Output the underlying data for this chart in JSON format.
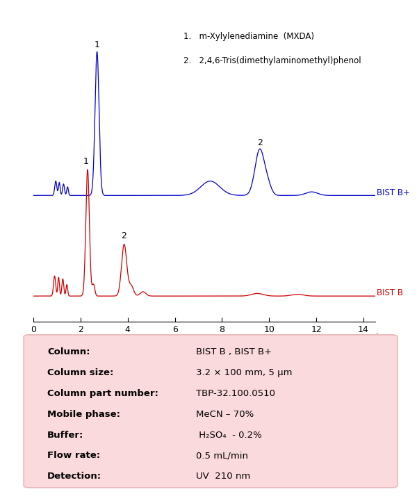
{
  "blue_label": "BIST B+",
  "red_label": "BIST B",
  "legend_line1": "1.   m-Xylylenediamine  (MXDA)",
  "legend_line2": "2.   2,4,6-Tris(dimethylaminomethyl)phenol",
  "xlabel": "min",
  "xlim": [
    0,
    14.5
  ],
  "xticks": [
    0,
    2,
    4,
    6,
    8,
    10,
    12,
    14
  ],
  "blue_color": "#0000CC",
  "red_color": "#CC0000",
  "box_color": "#FADADD",
  "box_edge_color": "#e8b8b8",
  "table_labels": [
    "Column:",
    "Column size:",
    "Column part number:",
    "Mobile phase:",
    "Buffer:",
    "Flow rate:",
    "Detection:"
  ],
  "table_values": [
    "BIST B , BIST B+",
    "3.2 × 100 mm, 5 μm",
    "TBP-32.100.0510",
    "MeCN – 70%",
    " H₂SO₄  - 0.2%",
    "0.5 mL/min",
    "UV  210 nm"
  ]
}
